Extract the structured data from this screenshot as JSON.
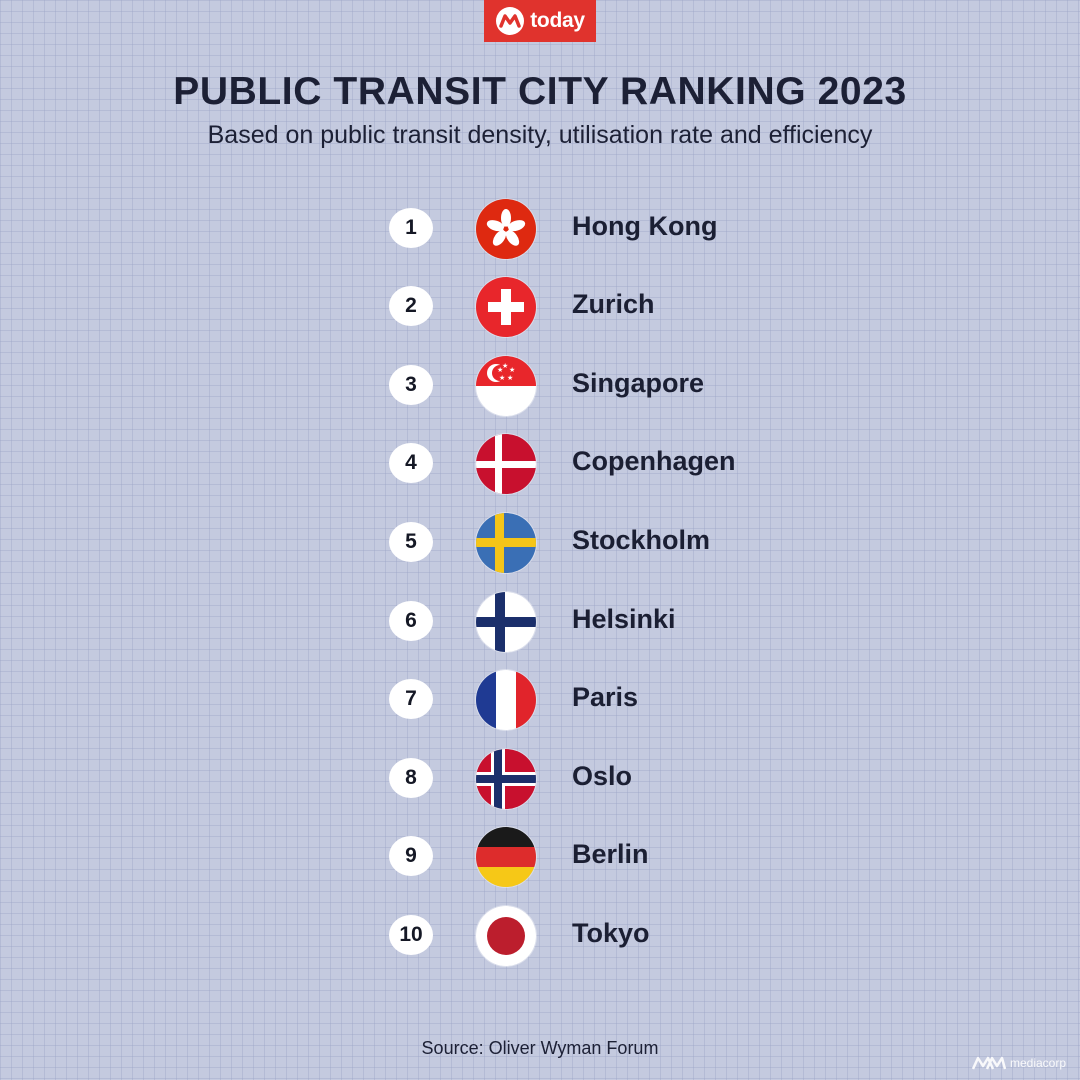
{
  "brand": {
    "logo_text": "today",
    "footer_brand": "mediacorp"
  },
  "title": "PUBLIC TRANSIT CITY RANKING 2023",
  "subtitle": "Based on public transit density, utilisation rate and efficiency",
  "rankings": [
    {
      "rank": "1",
      "city": "Hong Kong",
      "flag": "hong-kong-flag-icon"
    },
    {
      "rank": "2",
      "city": "Zurich",
      "flag": "switzerland-flag-icon"
    },
    {
      "rank": "3",
      "city": "Singapore",
      "flag": "singapore-flag-icon"
    },
    {
      "rank": "4",
      "city": "Copenhagen",
      "flag": "denmark-flag-icon"
    },
    {
      "rank": "5",
      "city": "Stockholm",
      "flag": "sweden-flag-icon"
    },
    {
      "rank": "6",
      "city": "Helsinki",
      "flag": "finland-flag-icon"
    },
    {
      "rank": "7",
      "city": "Paris",
      "flag": "france-flag-icon"
    },
    {
      "rank": "8",
      "city": "Oslo",
      "flag": "norway-flag-icon"
    },
    {
      "rank": "9",
      "city": "Berlin",
      "flag": "germany-flag-icon"
    },
    {
      "rank": "10",
      "city": "Tokyo",
      "flag": "japan-flag-icon"
    }
  ],
  "source": "Source: Oliver Wyman Forum",
  "colors": {
    "background": "#c4cadf",
    "brand_red": "#e0332d",
    "text": "#1b1f33"
  }
}
